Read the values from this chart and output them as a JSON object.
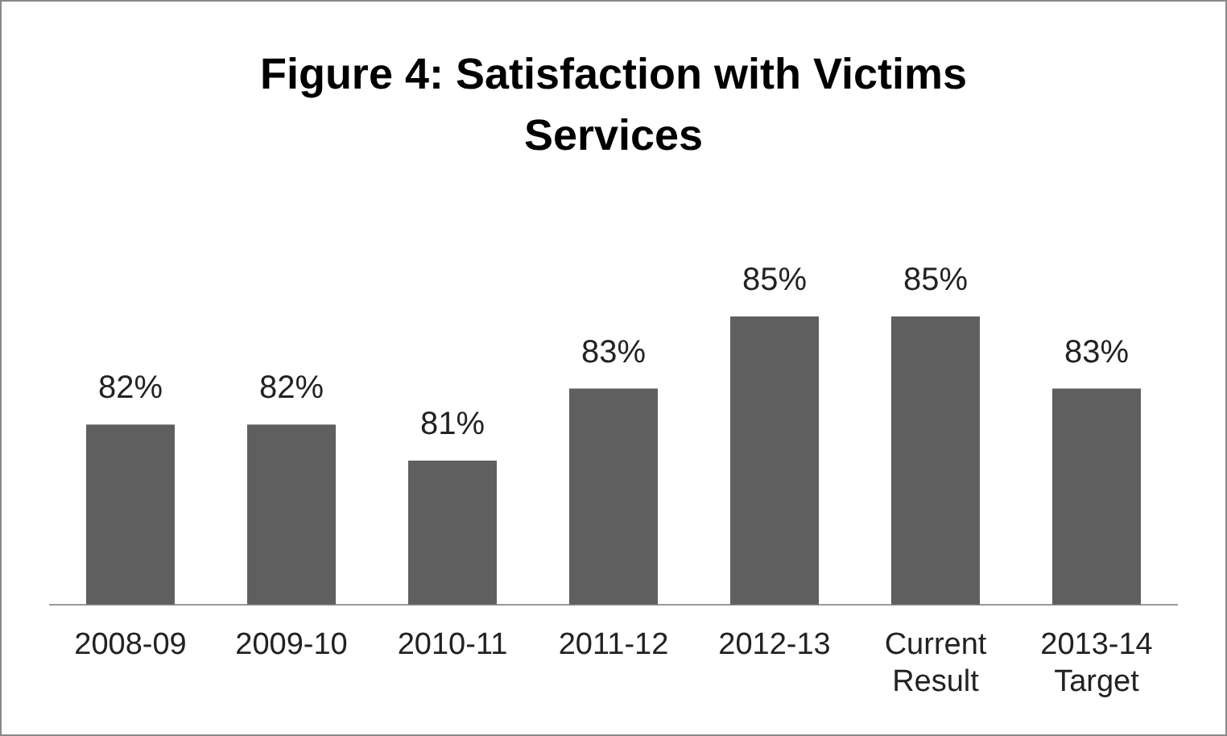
{
  "chart_data": {
    "type": "bar",
    "title": "Figure 4: Satisfaction with Victims Services",
    "categories": [
      "2008-09",
      "2009-10",
      "2010-11",
      "2011-12",
      "2012-13",
      "Current Result",
      "2013-14 Target"
    ],
    "values": [
      82,
      82,
      81,
      83,
      85,
      85,
      83
    ],
    "value_labels": [
      "82%",
      "82%",
      "81%",
      "83%",
      "85%",
      "85%",
      "83%"
    ],
    "color": "#5f5f5f",
    "grid": false,
    "legend": false
  }
}
